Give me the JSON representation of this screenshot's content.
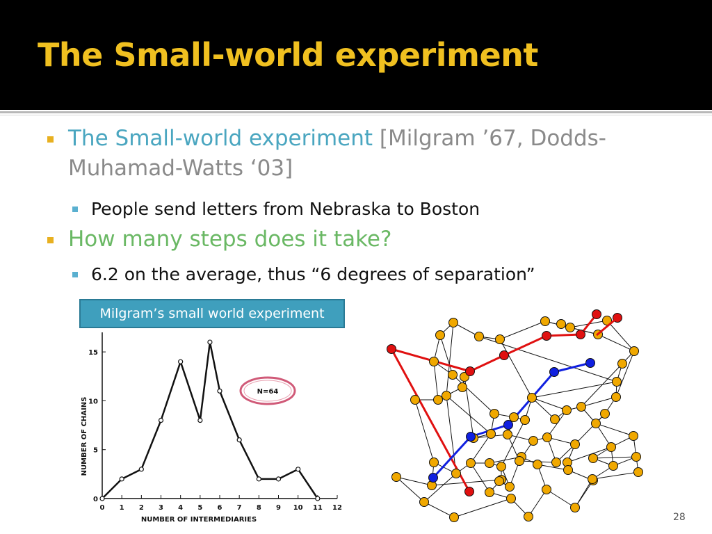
{
  "slide": {
    "title": "The Small-world experiment",
    "bullet1_colored": "The Small-world experiment",
    "bullet1_rest_line1": " [Milgram ’67, Dodds-",
    "bullet1_rest_line2": "Muhamad-Watts ‘03]",
    "bullet1_sub": "People send letters from Nebraska to Boston",
    "bullet2": "How many steps does it take?",
    "bullet2_sub": "6.2 on the average, thus “6 degrees of separation”",
    "caption": "Milgram’s small world experiment",
    "page_number": "28",
    "colors": {
      "header_bg": "#000000",
      "title": "#f0c020",
      "teal": "#4aa6c0",
      "green": "#6ab864",
      "caption_bg": "#3f9fbd",
      "node": "#f0a800",
      "path_red": "#e01010",
      "path_blue": "#1020e0"
    }
  },
  "chart_data": {
    "type": "line",
    "title": "",
    "xlabel": "NUMBER OF INTERMEDIARIES",
    "ylabel": "NUMBER OF CHAINS",
    "annotation": "N=64",
    "xlim": [
      0,
      12
    ],
    "ylim": [
      0,
      17
    ],
    "x_ticks": [
      "0",
      "1",
      "2",
      "3",
      "4",
      "5",
      "6",
      "7",
      "8",
      "9",
      "10",
      "11",
      "12"
    ],
    "y_ticks": [
      "0",
      "5",
      "10",
      "15"
    ],
    "x": [
      0,
      1,
      2,
      3,
      4,
      5,
      5.5,
      6,
      7,
      8,
      9,
      10,
      11
    ],
    "y": [
      0,
      2,
      3,
      8,
      14,
      8,
      16,
      11,
      6,
      2,
      2,
      3,
      0
    ]
  }
}
